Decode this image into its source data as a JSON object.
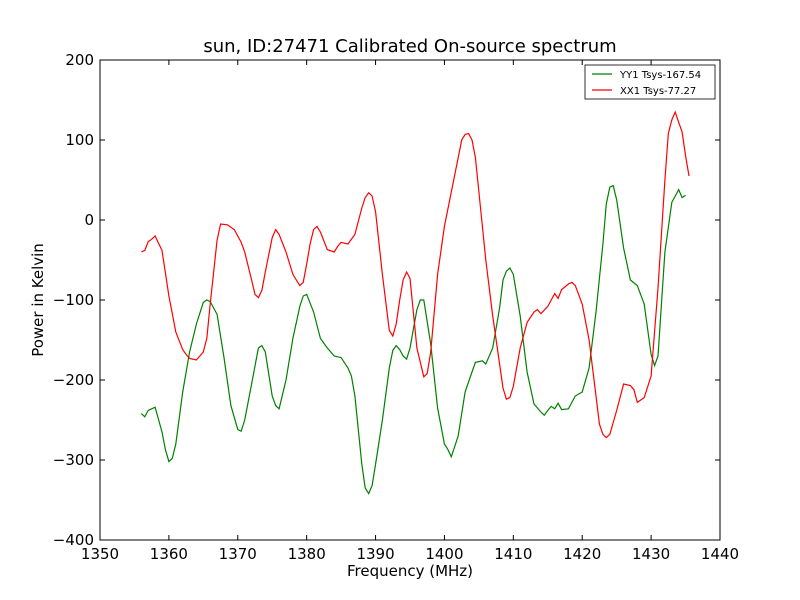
{
  "chart_data": {
    "type": "line",
    "title": "sun, ID:27471 Calibrated On-source spectrum",
    "xlabel": "Frequency (MHz)",
    "ylabel": "Power in Kelvin",
    "xlim": [
      1350,
      1440
    ],
    "ylim": [
      -400,
      200
    ],
    "xticks": [
      1350,
      1360,
      1370,
      1380,
      1390,
      1400,
      1410,
      1420,
      1430,
      1440
    ],
    "yticks": [
      -400,
      -300,
      -200,
      -100,
      0,
      100,
      200
    ],
    "grid": false,
    "legend_position": "top-right",
    "series": [
      {
        "name": "YY1 Tsys-167.54",
        "color": "#008000",
        "points": [
          [
            1356,
            -242
          ],
          [
            1356.5,
            -246
          ],
          [
            1357,
            -238
          ],
          [
            1358,
            -234
          ],
          [
            1359,
            -265
          ],
          [
            1359.5,
            -287
          ],
          [
            1360,
            -302
          ],
          [
            1360.5,
            -298
          ],
          [
            1361,
            -280
          ],
          [
            1362,
            -215
          ],
          [
            1363,
            -165
          ],
          [
            1364,
            -130
          ],
          [
            1365,
            -103
          ],
          [
            1365.5,
            -100
          ],
          [
            1366,
            -102
          ],
          [
            1367,
            -118
          ],
          [
            1368,
            -172
          ],
          [
            1369,
            -232
          ],
          [
            1370,
            -262
          ],
          [
            1370.5,
            -264
          ],
          [
            1371,
            -250
          ],
          [
            1372,
            -205
          ],
          [
            1373,
            -160
          ],
          [
            1373.5,
            -157
          ],
          [
            1374,
            -165
          ],
          [
            1375,
            -220
          ],
          [
            1375.5,
            -232
          ],
          [
            1376,
            -236
          ],
          [
            1377,
            -200
          ],
          [
            1378,
            -148
          ],
          [
            1379,
            -108
          ],
          [
            1379.5,
            -95
          ],
          [
            1380,
            -93
          ],
          [
            1381,
            -115
          ],
          [
            1382,
            -148
          ],
          [
            1383,
            -160
          ],
          [
            1384,
            -170
          ],
          [
            1385,
            -172
          ],
          [
            1386,
            -185
          ],
          [
            1386.5,
            -195
          ],
          [
            1387,
            -220
          ],
          [
            1388,
            -305
          ],
          [
            1388.5,
            -335
          ],
          [
            1389,
            -342
          ],
          [
            1389.5,
            -332
          ],
          [
            1390,
            -305
          ],
          [
            1391,
            -250
          ],
          [
            1392,
            -185
          ],
          [
            1392.5,
            -163
          ],
          [
            1393,
            -157
          ],
          [
            1393.5,
            -162
          ],
          [
            1394,
            -170
          ],
          [
            1394.5,
            -174
          ],
          [
            1395,
            -160
          ],
          [
            1396,
            -112
          ],
          [
            1396.5,
            -100
          ],
          [
            1397,
            -100
          ],
          [
            1398,
            -155
          ],
          [
            1399,
            -235
          ],
          [
            1400,
            -280
          ],
          [
            1400.5,
            -287
          ],
          [
            1401,
            -296
          ],
          [
            1402,
            -270
          ],
          [
            1403,
            -215
          ],
          [
            1404,
            -190
          ],
          [
            1404.5,
            -178
          ],
          [
            1405.5,
            -176
          ],
          [
            1406,
            -180
          ],
          [
            1407,
            -160
          ],
          [
            1408,
            -110
          ],
          [
            1408.5,
            -75
          ],
          [
            1409,
            -64
          ],
          [
            1409.5,
            -60
          ],
          [
            1410,
            -68
          ],
          [
            1411,
            -120
          ],
          [
            1412,
            -190
          ],
          [
            1413,
            -230
          ],
          [
            1414,
            -240
          ],
          [
            1414.5,
            -244
          ],
          [
            1415,
            -238
          ],
          [
            1415.5,
            -233
          ],
          [
            1416,
            -236
          ],
          [
            1416.5,
            -229
          ],
          [
            1417,
            -237
          ],
          [
            1418,
            -236
          ],
          [
            1419,
            -220
          ],
          [
            1420,
            -215
          ],
          [
            1421,
            -185
          ],
          [
            1422,
            -115
          ],
          [
            1423,
            -30
          ],
          [
            1423.5,
            20
          ],
          [
            1424,
            41
          ],
          [
            1424.5,
            43
          ],
          [
            1425,
            25
          ],
          [
            1426,
            -35
          ],
          [
            1427,
            -75
          ],
          [
            1428,
            -82
          ],
          [
            1429,
            -105
          ],
          [
            1430,
            -168
          ],
          [
            1430.5,
            -182
          ],
          [
            1431,
            -170
          ],
          [
            1432,
            -40
          ],
          [
            1433,
            22
          ],
          [
            1434,
            38
          ],
          [
            1434.5,
            28
          ],
          [
            1435,
            31
          ]
        ]
      },
      {
        "name": "XX1 Tsys-77.27",
        "color": "#ff0000",
        "points": [
          [
            1356,
            -40
          ],
          [
            1356.5,
            -38
          ],
          [
            1357,
            -27
          ],
          [
            1357.5,
            -24
          ],
          [
            1358,
            -20
          ],
          [
            1359,
            -38
          ],
          [
            1360,
            -95
          ],
          [
            1361,
            -140
          ],
          [
            1362,
            -162
          ],
          [
            1362.5,
            -168
          ],
          [
            1363,
            -173
          ],
          [
            1364,
            -175
          ],
          [
            1365,
            -165
          ],
          [
            1365.5,
            -148
          ],
          [
            1366,
            -105
          ],
          [
            1367,
            -25
          ],
          [
            1367.5,
            -5
          ],
          [
            1368.5,
            -6
          ],
          [
            1369.5,
            -12
          ],
          [
            1370.5,
            -28
          ],
          [
            1371,
            -40
          ],
          [
            1372,
            -75
          ],
          [
            1372.5,
            -93
          ],
          [
            1373,
            -97
          ],
          [
            1373.5,
            -88
          ],
          [
            1374,
            -65
          ],
          [
            1375,
            -22
          ],
          [
            1375.5,
            -12
          ],
          [
            1376,
            -18
          ],
          [
            1377,
            -40
          ],
          [
            1378,
            -68
          ],
          [
            1379,
            -82
          ],
          [
            1379.5,
            -78
          ],
          [
            1380,
            -55
          ],
          [
            1380.5,
            -30
          ],
          [
            1381,
            -12
          ],
          [
            1381.5,
            -8
          ],
          [
            1382,
            -15
          ],
          [
            1383,
            -37
          ],
          [
            1384,
            -40
          ],
          [
            1384.5,
            -33
          ],
          [
            1385,
            -28
          ],
          [
            1386,
            -30
          ],
          [
            1387,
            -18
          ],
          [
            1388,
            15
          ],
          [
            1388.5,
            28
          ],
          [
            1389,
            34
          ],
          [
            1389.5,
            30
          ],
          [
            1390,
            10
          ],
          [
            1391,
            -68
          ],
          [
            1392,
            -138
          ],
          [
            1392.5,
            -145
          ],
          [
            1393,
            -130
          ],
          [
            1393.5,
            -100
          ],
          [
            1394,
            -75
          ],
          [
            1394.5,
            -65
          ],
          [
            1395,
            -73
          ],
          [
            1396,
            -160
          ],
          [
            1397,
            -196
          ],
          [
            1397.5,
            -192
          ],
          [
            1398,
            -165
          ],
          [
            1399,
            -68
          ],
          [
            1400,
            -8
          ],
          [
            1401,
            35
          ],
          [
            1402,
            78
          ],
          [
            1402.5,
            100
          ],
          [
            1403,
            107
          ],
          [
            1403.5,
            108
          ],
          [
            1404,
            100
          ],
          [
            1404.5,
            78
          ],
          [
            1405,
            35
          ],
          [
            1406,
            -50
          ],
          [
            1407,
            -120
          ],
          [
            1408,
            -180
          ],
          [
            1408.5,
            -210
          ],
          [
            1409,
            -224
          ],
          [
            1409.5,
            -222
          ],
          [
            1410,
            -208
          ],
          [
            1411,
            -160
          ],
          [
            1412,
            -128
          ],
          [
            1413,
            -115
          ],
          [
            1413.5,
            -112
          ],
          [
            1414,
            -117
          ],
          [
            1415,
            -108
          ],
          [
            1416,
            -92
          ],
          [
            1416.5,
            -98
          ],
          [
            1417,
            -87
          ],
          [
            1418,
            -80
          ],
          [
            1418.5,
            -78
          ],
          [
            1419,
            -82
          ],
          [
            1420,
            -105
          ],
          [
            1421,
            -150
          ],
          [
            1422,
            -220
          ],
          [
            1422.5,
            -255
          ],
          [
            1423,
            -268
          ],
          [
            1423.5,
            -272
          ],
          [
            1424,
            -268
          ],
          [
            1425,
            -238
          ],
          [
            1426,
            -205
          ],
          [
            1427,
            -207
          ],
          [
            1427.5,
            -212
          ],
          [
            1428,
            -228
          ],
          [
            1429,
            -222
          ],
          [
            1430,
            -195
          ],
          [
            1431,
            -85
          ],
          [
            1432,
            50
          ],
          [
            1432.5,
            108
          ],
          [
            1433,
            125
          ],
          [
            1433.5,
            135
          ],
          [
            1434,
            122
          ],
          [
            1434.5,
            110
          ],
          [
            1435,
            80
          ],
          [
            1435.5,
            55
          ]
        ]
      }
    ]
  }
}
